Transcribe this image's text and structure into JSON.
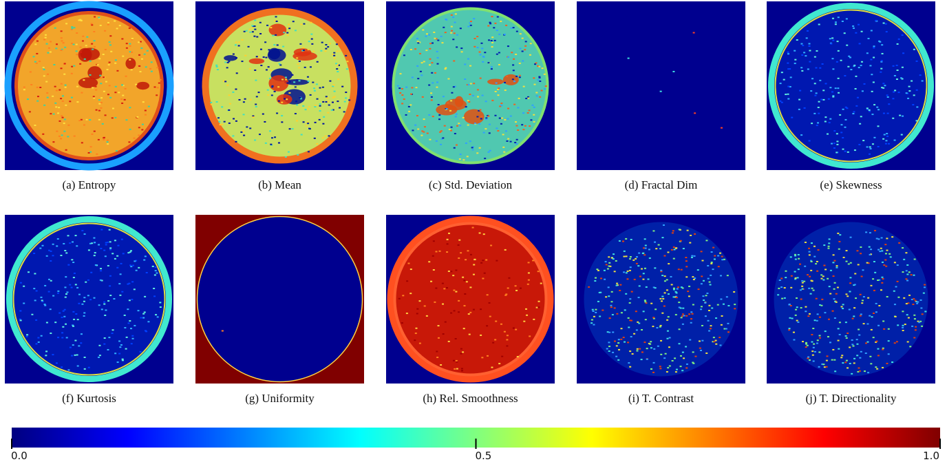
{
  "panels": [
    {
      "caption": "(a) Entropy"
    },
    {
      "caption": "(b) Mean"
    },
    {
      "caption": "(c) Std. Deviation"
    },
    {
      "caption": "(d) Fractal Dim"
    },
    {
      "caption": "(e) Skewness"
    },
    {
      "caption": "(f) Kurtosis"
    },
    {
      "caption": "(g) Uniformity"
    },
    {
      "caption": "(h) Rel. Smoothness"
    },
    {
      "caption": "(i) T. Contrast"
    },
    {
      "caption": "(j) T. Directionality"
    }
  ],
  "colorbar": {
    "lim": [
      0,
      1
    ],
    "ticks": [
      {
        "value": 0,
        "label": "0.0"
      },
      {
        "value": 0.5,
        "label": "0.5"
      },
      {
        "value": 1,
        "label": "1.0"
      }
    ]
  }
}
